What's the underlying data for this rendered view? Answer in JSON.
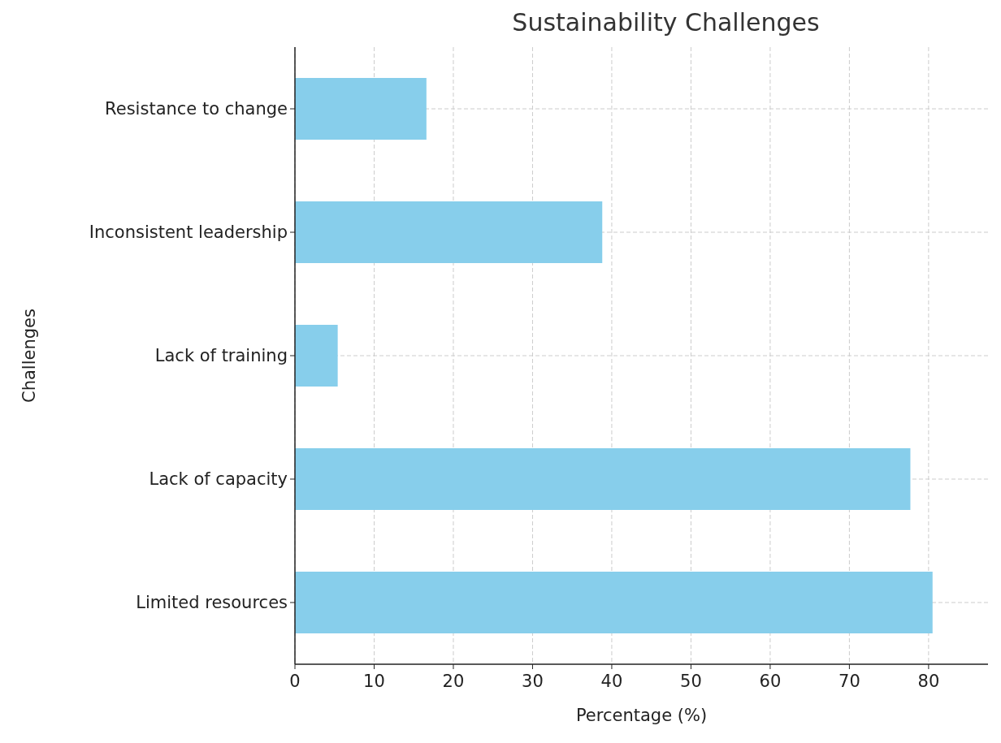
{
  "chart_data": {
    "type": "bar",
    "orientation": "horizontal",
    "title": "Sustainability Challenges",
    "xlabel": "Percentage (%)",
    "ylabel": "Challenges",
    "categories": [
      "Resistance to change",
      "Inconsistent leadership",
      "Lack of training",
      "Lack of capacity",
      "Limited resources"
    ],
    "values": [
      16.6,
      38.8,
      5.4,
      77.7,
      80.5
    ],
    "color": "#87ceeb",
    "xlim": [
      0,
      87.5
    ],
    "xticks": [
      0,
      10,
      20,
      30,
      40,
      50,
      60,
      70,
      80
    ],
    "grid": true
  }
}
